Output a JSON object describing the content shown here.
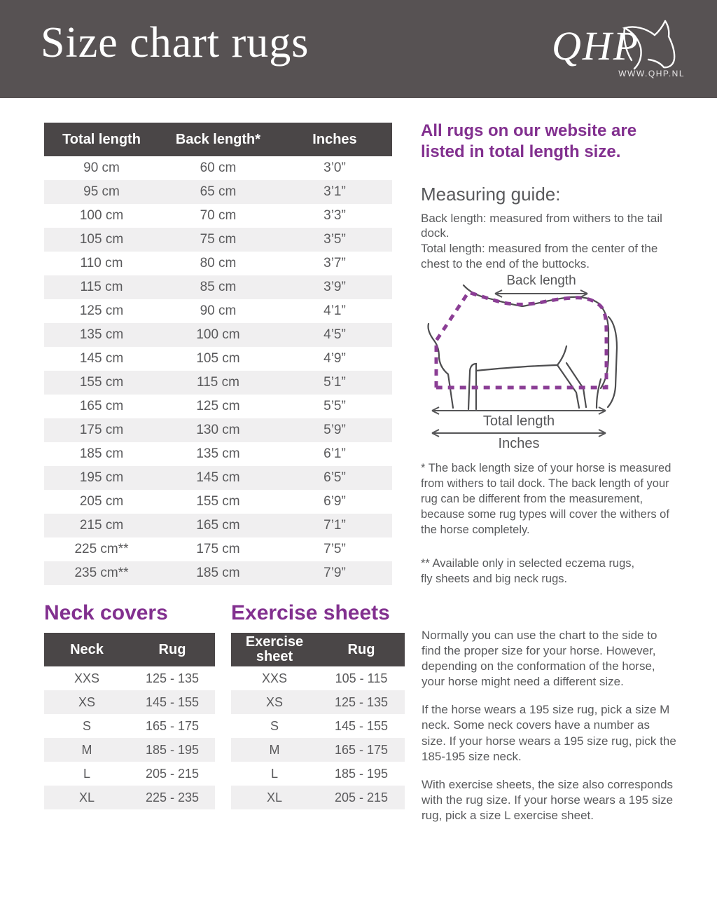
{
  "header": {
    "title": "Size chart rugs",
    "logo_text": "QHP",
    "logo_url": "WWW.QHP.NL"
  },
  "colors": {
    "header_bg": "#575253",
    "table_header_bg": "#4a4647",
    "row_stripe": "#f0eff0",
    "body_text": "#595a5c",
    "accent_purple": "#82308f",
    "diagram_dash_purple": "#8b3e95"
  },
  "main_table": {
    "headers": [
      "Total length",
      "Back length*",
      "Inches"
    ],
    "rows": [
      [
        "90 cm",
        "60 cm",
        "3’0”"
      ],
      [
        "95 cm",
        "65 cm",
        "3’1”"
      ],
      [
        "100 cm",
        "70 cm",
        "3’3”"
      ],
      [
        "105 cm",
        "75 cm",
        "3’5”"
      ],
      [
        "110 cm",
        "80 cm",
        "3’7”"
      ],
      [
        "115 cm",
        "85 cm",
        "3’9”"
      ],
      [
        "125 cm",
        "90 cm",
        "4’1”"
      ],
      [
        "135 cm",
        "100 cm",
        "4’5”"
      ],
      [
        "145 cm",
        "105 cm",
        "4’9”"
      ],
      [
        "155 cm",
        "115 cm",
        "5’1”"
      ],
      [
        "165 cm",
        "125 cm",
        "5’5”"
      ],
      [
        "175 cm",
        "130 cm",
        "5’9”"
      ],
      [
        "185 cm",
        "135 cm",
        "6’1”"
      ],
      [
        "195 cm",
        "145 cm",
        "6’5”"
      ],
      [
        "205 cm",
        "155 cm",
        "6’9”"
      ],
      [
        "215 cm",
        "165 cm",
        "7’1”"
      ],
      [
        "225 cm**",
        "175 cm",
        "7’5”"
      ],
      [
        "235 cm**",
        "185 cm",
        "7’9”"
      ]
    ]
  },
  "intro_heading": "All rugs on our website are listed in total length size.",
  "measuring_guide": {
    "heading": "Measuring guide:",
    "body": "Back length: measured from withers to the tail dock.\nTotal length: measured from the center of the chest to the end of the buttocks."
  },
  "diagram": {
    "back_length_label": "Back length",
    "total_length_label": "Total length",
    "inches_label": "Inches"
  },
  "footnotes": {
    "one": "* The back length size of your horse is measured from withers to tail dock. The back length of your rug can be different from the measurement, because some rug types will cover the withers of the horse completely.",
    "two": "** Available only in selected eczema rugs,\nfly sheets and big neck rugs."
  },
  "neck_covers": {
    "heading": "Neck covers",
    "headers": [
      "Neck",
      "Rug"
    ],
    "rows": [
      [
        "XXS",
        "125 - 135"
      ],
      [
        "XS",
        "145 - 155"
      ],
      [
        "S",
        "165 - 175"
      ],
      [
        "M",
        "185 - 195"
      ],
      [
        "L",
        "205 - 215"
      ],
      [
        "XL",
        "225 - 235"
      ]
    ]
  },
  "exercise_sheets": {
    "heading": "Exercise sheets",
    "headers": [
      "Exercise sheet",
      "Rug"
    ],
    "rows": [
      [
        "XXS",
        "105 - 115"
      ],
      [
        "XS",
        "125 - 135"
      ],
      [
        "S",
        "145 - 155"
      ],
      [
        "M",
        "165 - 175"
      ],
      [
        "L",
        "185 - 195"
      ],
      [
        "XL",
        "205 - 215"
      ]
    ]
  },
  "advice": {
    "p1": "Normally you can use the chart to the side to find the proper size for your horse.  However, depending on the conformation of the horse, your horse might need a different size.",
    "p2": "If the horse wears a 195 size rug, pick a size M neck. Some neck covers have a number as size. If your horse wears a 195 size rug, pick the 185-195 size neck.",
    "p3": "With exercise sheets, the size also corresponds with the rug size. If your horse wears a 195 size rug, pick a size L exercise sheet."
  }
}
